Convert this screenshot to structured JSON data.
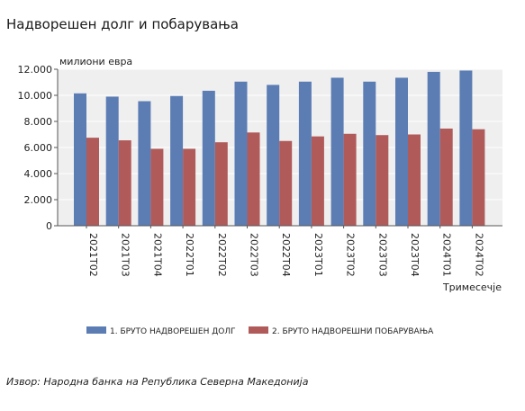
{
  "page": {
    "title": "Надворешен долг и побарувања",
    "source": "Извор: Народна банка на Република Северна Македонија"
  },
  "chart_data": {
    "type": "bar",
    "title": "Надворешен долг и побарувања",
    "ylabel": "милиони евра",
    "xlabel": "Тримесечје",
    "ylim": [
      0,
      12000
    ],
    "yticks": [
      0,
      2000,
      4000,
      6000,
      8000,
      10000,
      12000
    ],
    "ytick_labels": [
      "0",
      "2.000",
      "4.000",
      "6.000",
      "8.000",
      "10.000",
      "12.000"
    ],
    "categories": [
      "2021Т02",
      "2021Т03",
      "2021Т04",
      "2022Т01",
      "2022Т02",
      "2022Т03",
      "2022Т04",
      "2023Т01",
      "2023Т02",
      "2023Т03",
      "2023Т04",
      "2024Т01",
      "2024Т02"
    ],
    "series": [
      {
        "name": "1. БРУТО НАДВОРЕШЕН ДОЛГ",
        "color": "#5b7db4",
        "values": [
          10150,
          9900,
          9550,
          9950,
          10350,
          11050,
          10800,
          11050,
          11350,
          11050,
          11350,
          11800,
          11900
        ]
      },
      {
        "name": "2. БРУТО НАДВОРЕШНИ ПОБАРУВАЊА",
        "color": "#b05a5a",
        "values": [
          6750,
          6550,
          5900,
          5900,
          6400,
          7150,
          6500,
          6850,
          7050,
          6950,
          7000,
          7450,
          7400
        ]
      }
    ],
    "grid": true,
    "legend": "bottom"
  }
}
